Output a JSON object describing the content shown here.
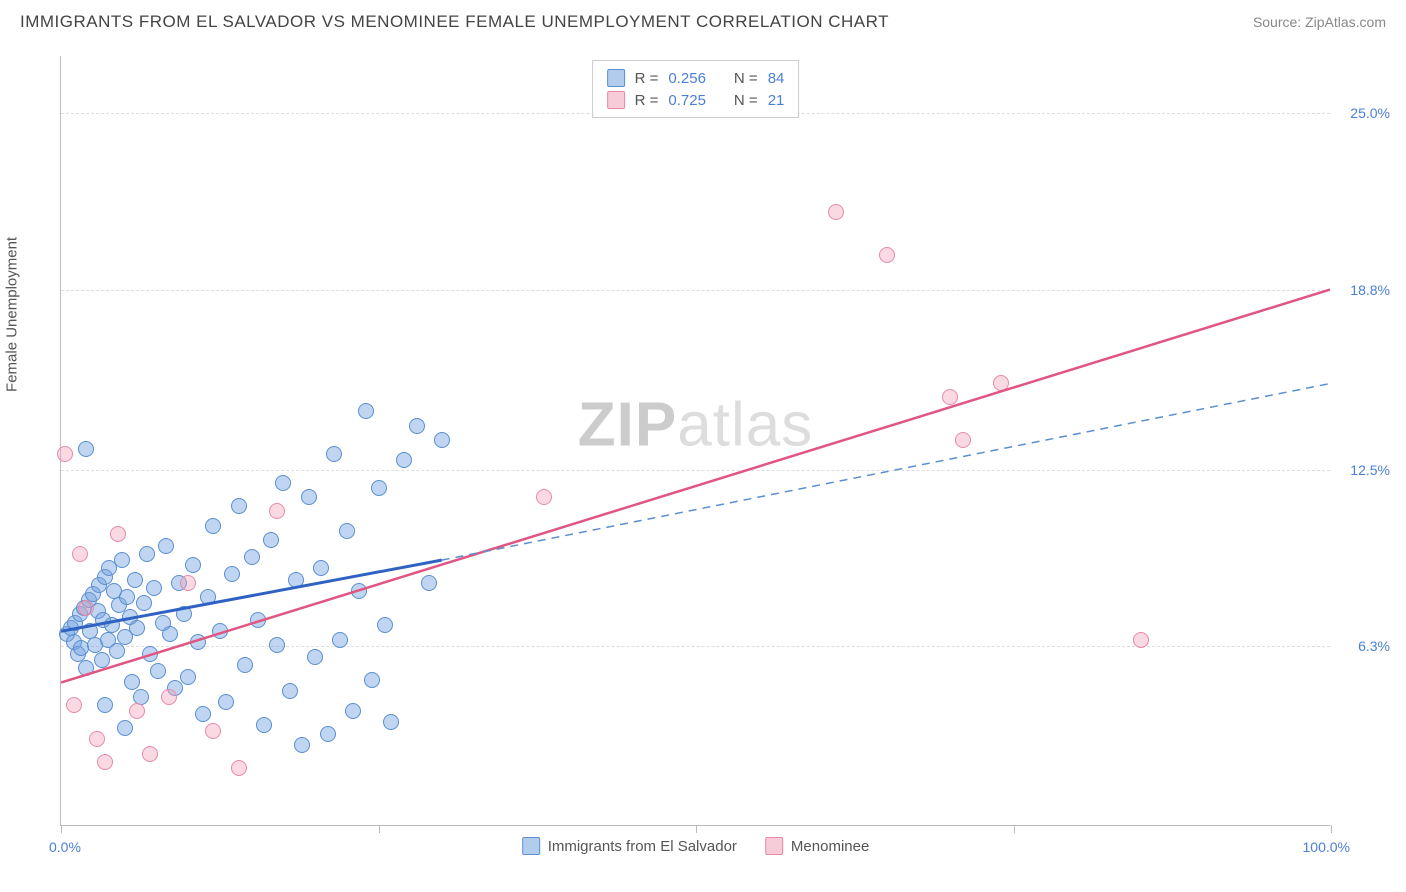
{
  "title": "IMMIGRANTS FROM EL SALVADOR VS MENOMINEE FEMALE UNEMPLOYMENT CORRELATION CHART",
  "source_label": "Source: ZipAtlas.com",
  "ylabel": "Female Unemployment",
  "watermark_a": "ZIP",
  "watermark_b": "atlas",
  "chart": {
    "type": "scatter",
    "xlim": [
      0,
      100
    ],
    "ylim": [
      0,
      27
    ],
    "x_ticks_pct": [
      0,
      25,
      50,
      75,
      100
    ],
    "y_gridlines": [
      6.3,
      12.5,
      18.8,
      25.0
    ],
    "y_tick_labels": [
      "6.3%",
      "12.5%",
      "18.8%",
      "25.0%"
    ],
    "x_tick_labels": {
      "left": "0.0%",
      "right": "100.0%"
    },
    "background_color": "#ffffff",
    "grid_color": "#dddddd",
    "axis_color": "#bbbbbb",
    "tick_label_color": "#4a7fd6",
    "point_radius": 8,
    "series": [
      {
        "name": "Immigrants from El Salvador",
        "color_fill": "rgba(114,162,223,0.45)",
        "color_stroke": "#5a8fd0",
        "R": "0.256",
        "N": "84",
        "trend_solid": {
          "x1": 0,
          "y1": 6.8,
          "x2": 30,
          "y2": 9.3,
          "color": "#2f62c2",
          "width": 3
        },
        "trend_dash": {
          "x1": 30,
          "y1": 9.3,
          "x2": 100,
          "y2": 15.5,
          "color": "#5a8fd0",
          "width": 1.5
        },
        "points": [
          [
            0.5,
            6.7
          ],
          [
            0.8,
            6.9
          ],
          [
            1.0,
            6.4
          ],
          [
            1.1,
            7.1
          ],
          [
            1.3,
            6.0
          ],
          [
            1.5,
            7.4
          ],
          [
            1.6,
            6.2
          ],
          [
            1.8,
            7.6
          ],
          [
            2.0,
            5.5
          ],
          [
            2.2,
            7.9
          ],
          [
            2.3,
            6.8
          ],
          [
            2.5,
            8.1
          ],
          [
            2.7,
            6.3
          ],
          [
            2.9,
            7.5
          ],
          [
            3.0,
            8.4
          ],
          [
            3.2,
            5.8
          ],
          [
            3.3,
            7.2
          ],
          [
            3.5,
            8.7
          ],
          [
            3.7,
            6.5
          ],
          [
            3.8,
            9.0
          ],
          [
            4.0,
            7.0
          ],
          [
            4.2,
            8.2
          ],
          [
            4.4,
            6.1
          ],
          [
            4.6,
            7.7
          ],
          [
            4.8,
            9.3
          ],
          [
            5.0,
            6.6
          ],
          [
            5.2,
            8.0
          ],
          [
            5.4,
            7.3
          ],
          [
            5.6,
            5.0
          ],
          [
            5.8,
            8.6
          ],
          [
            6.0,
            6.9
          ],
          [
            6.3,
            4.5
          ],
          [
            6.5,
            7.8
          ],
          [
            6.8,
            9.5
          ],
          [
            7.0,
            6.0
          ],
          [
            7.3,
            8.3
          ],
          [
            7.6,
            5.4
          ],
          [
            8.0,
            7.1
          ],
          [
            8.3,
            9.8
          ],
          [
            8.6,
            6.7
          ],
          [
            9.0,
            4.8
          ],
          [
            9.3,
            8.5
          ],
          [
            9.7,
            7.4
          ],
          [
            10.0,
            5.2
          ],
          [
            10.4,
            9.1
          ],
          [
            10.8,
            6.4
          ],
          [
            11.2,
            3.9
          ],
          [
            11.6,
            8.0
          ],
          [
            12.0,
            10.5
          ],
          [
            12.5,
            6.8
          ],
          [
            13.0,
            4.3
          ],
          [
            13.5,
            8.8
          ],
          [
            14.0,
            11.2
          ],
          [
            14.5,
            5.6
          ],
          [
            15.0,
            9.4
          ],
          [
            15.5,
            7.2
          ],
          [
            16.0,
            3.5
          ],
          [
            16.5,
            10.0
          ],
          [
            17.0,
            6.3
          ],
          [
            17.5,
            12.0
          ],
          [
            18.0,
            4.7
          ],
          [
            18.5,
            8.6
          ],
          [
            19.0,
            2.8
          ],
          [
            19.5,
            11.5
          ],
          [
            20.0,
            5.9
          ],
          [
            20.5,
            9.0
          ],
          [
            21.0,
            3.2
          ],
          [
            21.5,
            13.0
          ],
          [
            22.0,
            6.5
          ],
          [
            22.5,
            10.3
          ],
          [
            23.0,
            4.0
          ],
          [
            23.5,
            8.2
          ],
          [
            24.0,
            14.5
          ],
          [
            24.5,
            5.1
          ],
          [
            25.0,
            11.8
          ],
          [
            25.5,
            7.0
          ],
          [
            26.0,
            3.6
          ],
          [
            27.0,
            12.8
          ],
          [
            28.0,
            14.0
          ],
          [
            29.0,
            8.5
          ],
          [
            30.0,
            13.5
          ],
          [
            2.0,
            13.2
          ],
          [
            3.5,
            4.2
          ],
          [
            5.0,
            3.4
          ]
        ]
      },
      {
        "name": "Menominee",
        "color_fill": "rgba(242,160,185,0.40)",
        "color_stroke": "#e68aaa",
        "R": "0.725",
        "N": "21",
        "trend_solid": {
          "x1": 0,
          "y1": 5.0,
          "x2": 100,
          "y2": 18.8,
          "color": "#e15582",
          "width": 2.5
        },
        "points": [
          [
            0.3,
            13.0
          ],
          [
            1.0,
            4.2
          ],
          [
            1.5,
            9.5
          ],
          [
            2.0,
            7.6
          ],
          [
            2.8,
            3.0
          ],
          [
            3.5,
            2.2
          ],
          [
            4.5,
            10.2
          ],
          [
            6.0,
            4.0
          ],
          [
            7.0,
            2.5
          ],
          [
            8.5,
            4.5
          ],
          [
            10.0,
            8.5
          ],
          [
            12.0,
            3.3
          ],
          [
            14.0,
            2.0
          ],
          [
            17.0,
            11.0
          ],
          [
            38.0,
            11.5
          ],
          [
            61.0,
            21.5
          ],
          [
            65.0,
            20.0
          ],
          [
            70.0,
            15.0
          ],
          [
            71.0,
            13.5
          ],
          [
            74.0,
            15.5
          ],
          [
            85.0,
            6.5
          ]
        ]
      }
    ]
  },
  "legend_top": {
    "rows": [
      {
        "swatch": "blue",
        "R_label": "R =",
        "R": "0.256",
        "N_label": "N =",
        "N": "84"
      },
      {
        "swatch": "pink",
        "R_label": "R =",
        "R": "0.725",
        "N_label": "N =",
        "N": "21"
      }
    ]
  },
  "legend_bottom": [
    {
      "swatch": "blue",
      "label": "Immigrants from El Salvador"
    },
    {
      "swatch": "pink",
      "label": "Menominee"
    }
  ]
}
